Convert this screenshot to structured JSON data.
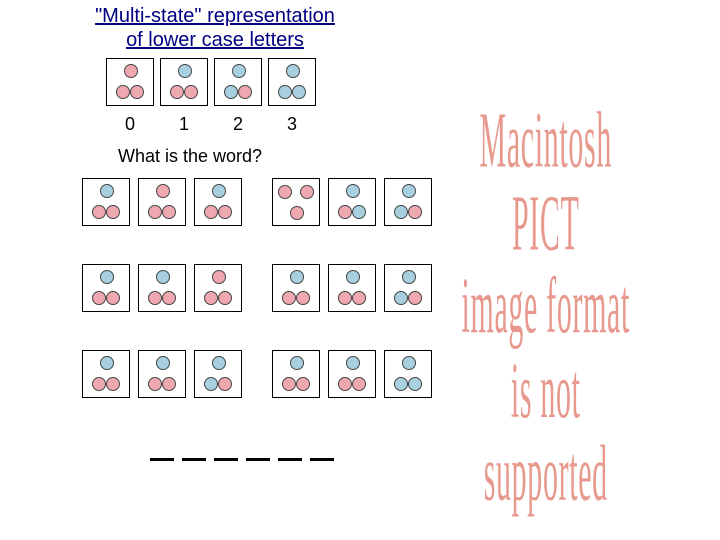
{
  "title_line1": "\"Multi-state\" representation",
  "title_line2": "of lower case letters",
  "question": "What is the word?",
  "colors": {
    "blue": "#a8d0e0",
    "pink": "#f0a8b0",
    "border": "#444444"
  },
  "demo_labels": [
    "0",
    "1",
    "2",
    "3"
  ],
  "demo_cells": [
    {
      "top": "pink",
      "bl": "pink",
      "br": "pink"
    },
    {
      "top": "blue",
      "bl": "pink",
      "br": "pink"
    },
    {
      "top": "blue",
      "bl": "blue",
      "br": "pink"
    },
    {
      "top": "blue",
      "bl": "blue",
      "br": "blue"
    }
  ],
  "puzzle_rows": [
    [
      [
        {
          "top": "blue",
          "bl": "pink",
          "br": "pink"
        },
        {
          "top": "pink",
          "bl": "pink",
          "br": "pink"
        },
        {
          "top": "blue",
          "bl": "pink",
          "br": "pink"
        }
      ],
      [
        {
          "tl": "pink",
          "tr": "pink",
          "bottom": "pink"
        },
        {
          "top": "blue",
          "bl": "pink",
          "br": "blue"
        },
        {
          "top": "blue",
          "bl": "blue",
          "br": "pink"
        }
      ]
    ],
    [
      [
        {
          "top": "blue",
          "bl": "pink",
          "br": "pink"
        },
        {
          "top": "blue",
          "bl": "pink",
          "br": "pink"
        },
        {
          "top": "pink",
          "bl": "pink",
          "br": "pink"
        }
      ],
      [
        {
          "top": "blue",
          "bl": "pink",
          "br": "pink"
        },
        {
          "top": "blue",
          "bl": "pink",
          "br": "pink"
        },
        {
          "top": "blue",
          "bl": "blue",
          "br": "pink"
        }
      ]
    ],
    [
      [
        {
          "top": "blue",
          "bl": "pink",
          "br": "pink"
        },
        {
          "top": "blue",
          "bl": "pink",
          "br": "pink"
        },
        {
          "top": "blue",
          "bl": "blue",
          "br": "pink"
        }
      ],
      [
        {
          "top": "blue",
          "bl": "pink",
          "br": "pink"
        },
        {
          "top": "blue",
          "bl": "pink",
          "br": "pink"
        },
        {
          "top": "blue",
          "bl": "blue",
          "br": "blue"
        }
      ]
    ]
  ],
  "blank_count": 6,
  "pict_error": {
    "line1": "Macintosh PICT",
    "line2": "image format",
    "line3": "is not supported"
  }
}
